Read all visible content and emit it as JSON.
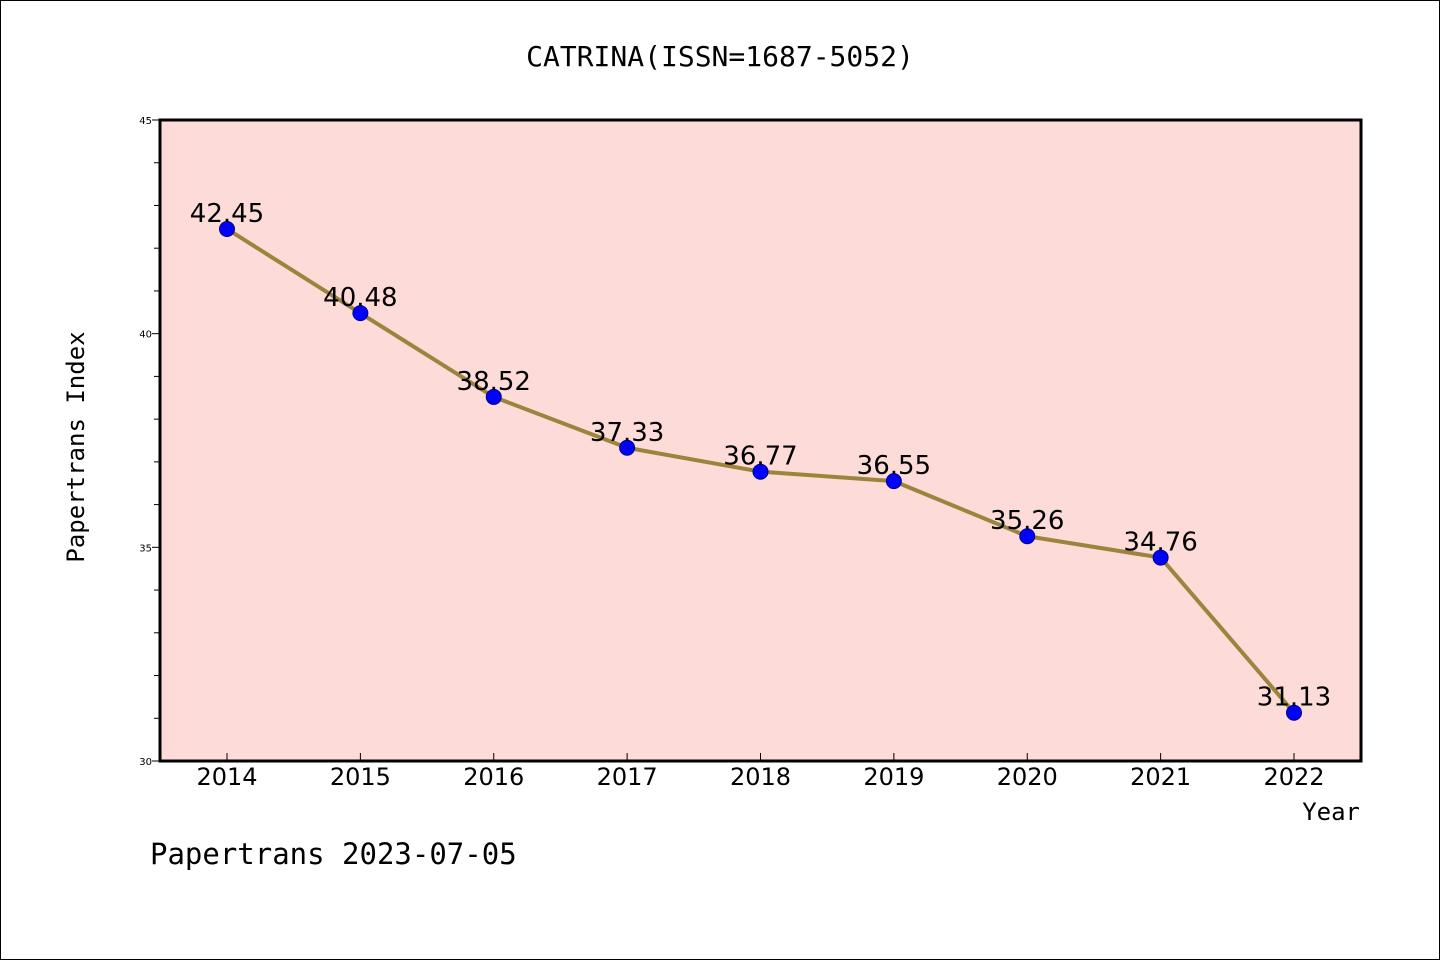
{
  "chart_data": {
    "type": "line",
    "title": "CATRINA(ISSN=1687-5052)",
    "xlabel": "Year",
    "ylabel": "Papertrans Index",
    "x": [
      "2014",
      "2015",
      "2016",
      "2017",
      "2018",
      "2019",
      "2020",
      "2021",
      "2022"
    ],
    "series": [
      {
        "values": [
          42.45,
          40.48,
          38.52,
          37.33,
          36.77,
          36.55,
          35.26,
          34.76,
          31.13
        ],
        "data_labels": [
          "42.45",
          "40.48",
          "38.52",
          "37.33",
          "36.77",
          "36.55",
          "35.26",
          "34.76",
          "31.13"
        ]
      }
    ],
    "ylim": [
      30,
      45
    ],
    "yticks": [
      "30",
      "35",
      "40",
      "45"
    ],
    "ytick_values": [
      30,
      35,
      40,
      45
    ],
    "grid": false,
    "colors": {
      "plot_background": "#fddbd8",
      "line": "#9b843c",
      "marker": "#0000ff",
      "marker_edge": "#000080"
    }
  },
  "footer": {
    "text": "Papertrans 2023-07-05"
  }
}
